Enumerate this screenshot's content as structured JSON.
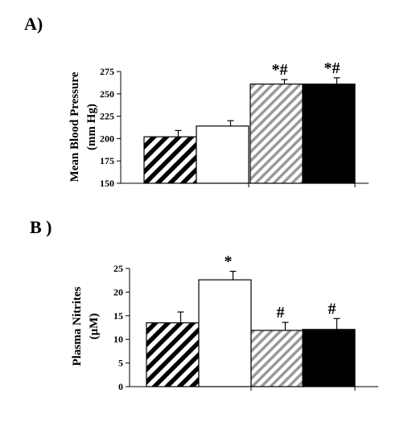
{
  "chart_data": [
    {
      "type": "bar",
      "panel_label": "A)",
      "ylabel_line1": "Mean Blood Pressure",
      "ylabel_line2": "(mm Hg)",
      "ylim": [
        150,
        275
      ],
      "yticks": [
        150,
        175,
        200,
        225,
        250,
        275
      ],
      "values": [
        202,
        214,
        261,
        261
      ],
      "errors": [
        7,
        6,
        5,
        7
      ],
      "annotations": [
        "",
        "",
        "*#",
        "*#"
      ],
      "fills": [
        "hatch-black",
        "white",
        "hatch-gray",
        "black"
      ]
    },
    {
      "type": "bar",
      "panel_label": "B )",
      "ylabel_line1": "Plasma Nitrites",
      "ylabel_line2": "(μM)",
      "ylim": [
        0,
        25
      ],
      "yticks": [
        0,
        5,
        10,
        15,
        20,
        25
      ],
      "values": [
        13.5,
        22.6,
        11.9,
        12.1
      ],
      "errors": [
        2.3,
        1.8,
        1.7,
        2.3
      ],
      "annotations": [
        "",
        "*",
        "#",
        "#"
      ],
      "fills": [
        "hatch-black",
        "white",
        "hatch-gray",
        "black"
      ]
    }
  ]
}
